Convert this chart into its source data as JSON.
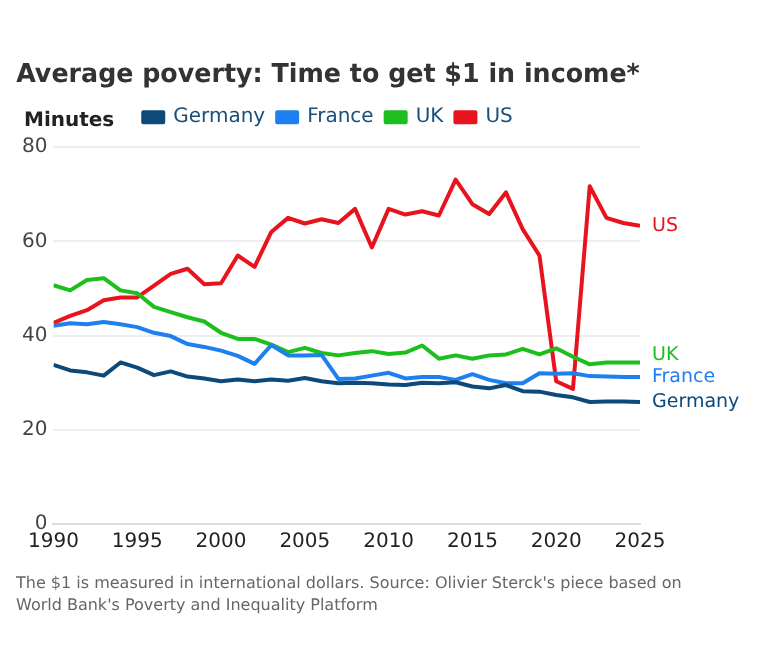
{
  "chart_data": {
    "type": "line",
    "title": "Average poverty: Time to get $1 in income*",
    "ylabel": "Minutes",
    "x": [
      1990,
      1991,
      1992,
      1993,
      1994,
      1995,
      1996,
      1997,
      1998,
      1999,
      2000,
      2001,
      2002,
      2003,
      2004,
      2005,
      2006,
      2007,
      2008,
      2009,
      2010,
      2011,
      2012,
      2013,
      2014,
      2015,
      2016,
      2017,
      2018,
      2019,
      2020,
      2021,
      2022,
      2023,
      2024,
      2025
    ],
    "series": [
      {
        "name": "Germany",
        "color": "#0d4a7a",
        "values": [
          33.8,
          32.6,
          32.2,
          31.5,
          34.3,
          33.2,
          31.6,
          32.4,
          31.3,
          30.9,
          30.3,
          30.7,
          30.3,
          30.7,
          30.4,
          31,
          30.3,
          29.9,
          30,
          29.9,
          29.6,
          29.5,
          30,
          29.9,
          30.1,
          29.2,
          28.8,
          29.5,
          28.2,
          28.1,
          27.4,
          26.9,
          25.9,
          26,
          26,
          25.9
        ]
      },
      {
        "name": "France",
        "color": "#1e7ff0",
        "values": [
          42.1,
          42.6,
          42.4,
          42.9,
          42.4,
          41.8,
          40.6,
          39.9,
          38.2,
          37.6,
          36.8,
          35.7,
          34,
          38,
          35.8,
          35.8,
          35.9,
          30.8,
          30.9,
          31.5,
          32.1,
          30.9,
          31.2,
          31.2,
          30.6,
          31.8,
          30.6,
          29.9,
          29.9,
          32,
          31.9,
          32,
          31.4,
          31.3,
          31.2,
          31.2
        ]
      },
      {
        "name": "UK",
        "color": "#1dbf1d",
        "values": [
          50.7,
          49.6,
          51.8,
          52.2,
          49.6,
          49,
          46.1,
          45,
          43.9,
          43,
          40.6,
          39.3,
          39.3,
          38.1,
          36.5,
          37.4,
          36.3,
          35.8,
          36.3,
          36.7,
          36.1,
          36.4,
          37.9,
          35.1,
          35.8,
          35.1,
          35.8,
          36,
          37.2,
          36,
          37.3,
          35.5,
          33.9,
          34.3,
          34.3,
          34.3
        ]
      },
      {
        "name": "US",
        "color": "#e8131c",
        "values": [
          42.7,
          44.2,
          45.4,
          47.5,
          48.1,
          48.1,
          50.6,
          53.1,
          54.2,
          50.9,
          51.1,
          57,
          54.6,
          62,
          65,
          63.8,
          64.7,
          63.9,
          66.9,
          58.7,
          66.9,
          65.7,
          66.4,
          65.5,
          73.1,
          67.9,
          65.8,
          70.4,
          62.6,
          57,
          30.3,
          28.7,
          71.7,
          65,
          63.9,
          63.3
        ]
      }
    ],
    "xlim": [
      1990,
      2025
    ],
    "xticks": [
      1990,
      1995,
      2000,
      2005,
      2010,
      2015,
      2020,
      2025
    ],
    "ylim": [
      0,
      80
    ],
    "yticks": [
      0,
      20,
      40,
      60,
      80
    ],
    "grid": "y",
    "legend": "top",
    "marker": "none",
    "line_style": "solid",
    "annotations": [
      "The $1 is measured in international dollars. Source: Olivier Sterck's piece based on World Bank's Poverty and Inequality Platform"
    ]
  }
}
